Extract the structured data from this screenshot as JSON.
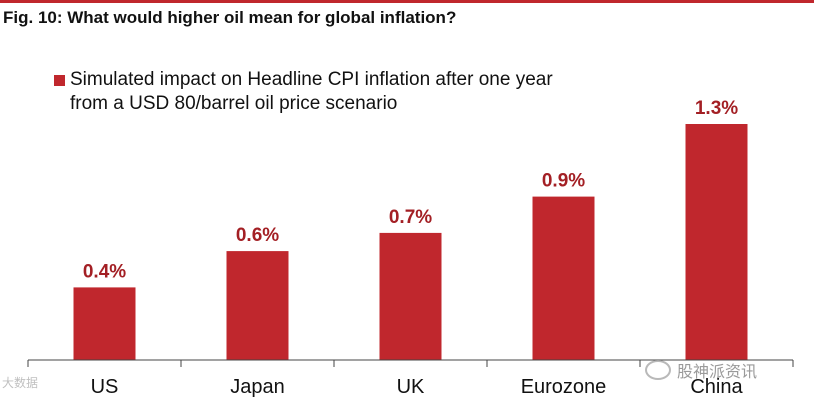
{
  "chart_data": {
    "type": "bar",
    "title": "Fig. 10: What would higher oil mean for global inflation?",
    "legend": "Simulated impact on Headline CPI inflation after one year from a USD 80/barrel oil price scenario",
    "categories": [
      "US",
      "Japan",
      "UK",
      "Eurozone",
      "China"
    ],
    "values": [
      0.4,
      0.6,
      0.7,
      0.9,
      1.3
    ],
    "data_labels": [
      "0.4%",
      "0.6%",
      "0.7%",
      "0.9%",
      "1.3%"
    ],
    "xlabel": "",
    "ylabel": "",
    "ylim": [
      0,
      1.3
    ],
    "grid": false,
    "legend_position": "top-left"
  },
  "colors": {
    "bar": "#c0272d",
    "label": "#a31f24",
    "axis": "#444444",
    "text": "#111111"
  },
  "watermarks": {
    "right": "股神派资讯",
    "left": "大数据"
  }
}
